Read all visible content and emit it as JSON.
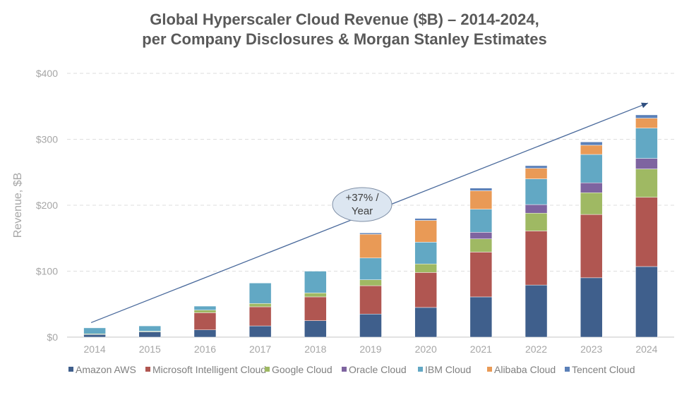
{
  "chart_data": {
    "type": "bar",
    "stacked": true,
    "title_line1": "Global Hyperscaler Cloud Revenue ($B) – 2014-2024,",
    "title_line2": "per Company Disclosures & Morgan Stanley Estimates",
    "xlabel": "",
    "ylabel": "Revenue, $B",
    "ylim": [
      0,
      400
    ],
    "yticks": [
      0,
      100,
      200,
      300,
      400
    ],
    "ytick_labels": [
      "$0",
      "$100",
      "$200",
      "$300",
      "$400"
    ],
    "grid": true,
    "legend_position": "bottom",
    "categories": [
      "2014",
      "2015",
      "2016",
      "2017",
      "2018",
      "2019",
      "2020",
      "2021",
      "2022",
      "2023",
      "2024"
    ],
    "series": [
      {
        "name": "Amazon AWS",
        "color": "#3f5f8c",
        "values": [
          4,
          8,
          11,
          17,
          25,
          35,
          45,
          61,
          79,
          90,
          107
        ]
      },
      {
        "name": "Microsoft Intelligent Cloud",
        "color": "#b05651",
        "values": [
          0,
          0,
          26,
          29,
          36,
          43,
          53,
          68,
          82,
          96,
          105
        ]
      },
      {
        "name": "Google Cloud",
        "color": "#9fb963",
        "values": [
          1,
          1,
          4,
          5,
          6,
          9,
          13,
          20,
          27,
          33,
          43
        ]
      },
      {
        "name": "Oracle Cloud",
        "color": "#7e64a0",
        "values": [
          0,
          0,
          0,
          0,
          0,
          0,
          0,
          10,
          13,
          15,
          16
        ]
      },
      {
        "name": "IBM Cloud",
        "color": "#62a8c4",
        "values": [
          9,
          8,
          6,
          31,
          33,
          33,
          33,
          35,
          39,
          43,
          46
        ]
      },
      {
        "name": "Alibaba Cloud",
        "color": "#e99a56",
        "values": [
          0,
          0,
          0,
          0,
          0,
          36,
          33,
          28,
          16,
          14,
          15
        ]
      },
      {
        "name": "Tencent Cloud",
        "color": "#5b80b8",
        "values": [
          0,
          0,
          0,
          0,
          0,
          2,
          3,
          4,
          4,
          5,
          5
        ]
      }
    ],
    "annotation": {
      "line1": "+37% /",
      "line2": "Year",
      "from_value": [
        2014,
        22
      ],
      "to_value": [
        2024,
        355
      ]
    }
  }
}
